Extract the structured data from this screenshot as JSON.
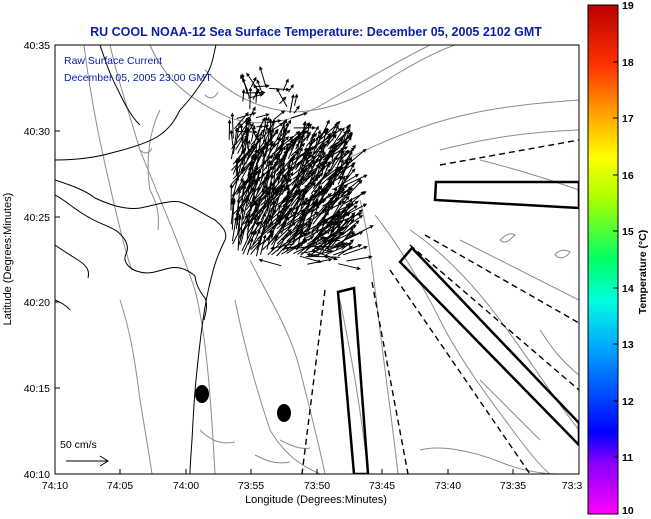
{
  "title": "RU COOL  NOAA-12  Sea Surface Temperature:  December 05, 2005 2102 GMT",
  "current_legend": {
    "line1": "Raw Surface Current",
    "line2": "December 05, 2005 23:00 GMT"
  },
  "scale_label": "50 cm/s",
  "axes": {
    "xlabel": "Longitude (Degrees:Minutes)",
    "ylabel": "Latitude (Degrees:Minutes)",
    "xticks": [
      "74:10",
      "74:05",
      "74:00",
      "73:55",
      "73:50",
      "73:45",
      "73:40",
      "73:35",
      "73:3"
    ],
    "yticks": [
      "40:35",
      "40:30",
      "40:25",
      "40:20",
      "40:15",
      "40:10"
    ]
  },
  "colorbar": {
    "label": "Temperature (°C)",
    "ticks": [
      "19",
      "18",
      "17",
      "16",
      "15",
      "14",
      "13",
      "12",
      "11",
      "10"
    ],
    "min": 10,
    "max": 19
  },
  "colors": {
    "title": "#0a1ea8",
    "coast": "#000000",
    "bathymetry": "#8c8c8c",
    "vectors": "#000000"
  },
  "icons": {
    "buoy_markers": "filled-ellipse",
    "scale_arrow": "right-arrow"
  }
}
